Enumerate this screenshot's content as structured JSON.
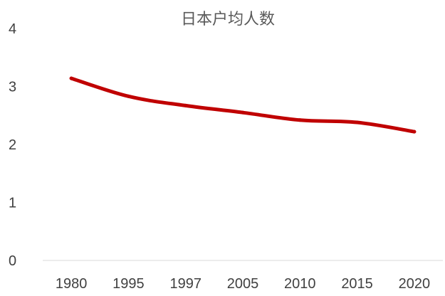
{
  "chart_data": {
    "type": "line",
    "title": "日本户均人数",
    "xlabel": "",
    "ylabel": "",
    "categories": [
      "1980",
      "1995",
      "1997",
      "2005",
      "2010",
      "2015",
      "2020"
    ],
    "series": [
      {
        "values": [
          3.14,
          2.83,
          2.67,
          2.55,
          2.42,
          2.38,
          2.22
        ],
        "color": "#c00000"
      }
    ],
    "ylim": [
      0,
      4
    ],
    "yticks": [
      "0",
      "1",
      "2",
      "3",
      "4"
    ],
    "grid": false,
    "line_smooth": true,
    "axis_color": "#d9d9d9"
  }
}
